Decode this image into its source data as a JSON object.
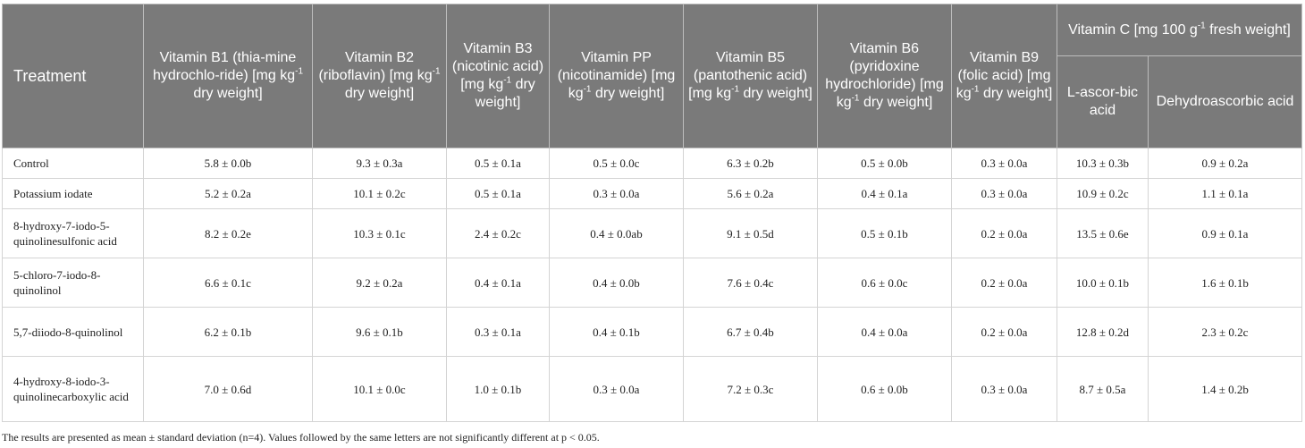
{
  "table": {
    "headers": {
      "treatment": "Treatment",
      "b1": {
        "pre": "Vitamin B1 (thia-mine hydrochlo-ride) [mg kg",
        "sup": "-1",
        "post": " dry weight]"
      },
      "b2": {
        "pre": "Vitamin B2 (riboflavin) [mg kg",
        "sup": "-1",
        "post": " dry weight]"
      },
      "b3": {
        "pre": "Vitamin B3 (nicotinic acid) [mg kg",
        "sup": "-1",
        "post": " dry weight]"
      },
      "pp": {
        "pre": "Vitamin PP (nicotinamide) [mg kg",
        "sup": "-1",
        "post": " dry weight]"
      },
      "b5": {
        "pre": "Vitamin B5 (pantothenic acid) [mg kg",
        "sup": "-1",
        "post": " dry weight]"
      },
      "b6": {
        "pre": "Vitamin B6 (pyridoxine hydrochloride) [mg kg",
        "sup": "-1",
        "post": " dry weight]"
      },
      "b9": {
        "pre": "Vitamin B9 (folic acid) [mg kg",
        "sup": "-1",
        "post": " dry weight]"
      },
      "vitc": {
        "pre": "Vitamin C [mg 100 g",
        "sup": "-1",
        "post": " fresh weight]"
      },
      "lasc": "L-ascor-bic acid",
      "dha": "Dehydroascorbic acid"
    },
    "rows": [
      {
        "treatment": "Control",
        "values": [
          "5.8 ± 0.0b",
          "9.3 ± 0.3a",
          "0.5 ± 0.1a",
          "0.5 ± 0.0c",
          "6.3 ± 0.2b",
          "0.5 ± 0.0b",
          "0.3 ± 0.0a",
          "10.3 ± 0.3b",
          "0.9 ± 0.2a"
        ]
      },
      {
        "treatment": "Potassium iodate",
        "values": [
          "5.2 ± 0.2a",
          "10.1 ± 0.2c",
          "0.5 ± 0.1a",
          "0.3 ± 0.0a",
          "5.6 ± 0.2a",
          "0.4 ± 0.1a",
          "0.3 ± 0.0a",
          "10.9 ± 0.2c",
          "1.1 ± 0.1a"
        ]
      },
      {
        "treatment": "8-hydroxy-7-iodo-5-quinolinesulfonic acid",
        "values": [
          "8.2 ± 0.2e",
          "10.3 ± 0.1c",
          "2.4 ± 0.2c",
          "0.4 ± 0.0ab",
          "9.1 ± 0.5d",
          "0.5 ± 0.1b",
          "0.2 ± 0.0a",
          "13.5 ± 0.6e",
          "0.9 ± 0.1a"
        ]
      },
      {
        "treatment": "5-chloro-7-iodo-8-quinolinol",
        "values": [
          "6.6 ± 0.1c",
          "9.2 ± 0.2a",
          "0.4 ± 0.1a",
          "0.4 ± 0.0b",
          "7.6 ± 0.4c",
          "0.6 ± 0.0c",
          "0.2 ± 0.0a",
          "10.0 ± 0.1b",
          "1.6 ± 0.1b"
        ]
      },
      {
        "treatment": "5,7-diiodo-8-quinolinol",
        "values": [
          "6.2 ± 0.1b",
          "9.6 ± 0.1b",
          "0.3 ± 0.1a",
          "0.4 ± 0.1b",
          "6.7 ± 0.4b",
          "0.4 ± 0.0a",
          "0.2 ± 0.0a",
          "12.8 ± 0.2d",
          "2.3 ± 0.2c"
        ]
      },
      {
        "treatment": "4-hydroxy-8-iodo-3-quinolinecarboxylic acid",
        "values": [
          "7.0 ± 0.6d",
          "10.1 ± 0.0c",
          "1.0 ± 0.1b",
          "0.3 ± 0.0a",
          "7.2 ± 0.3c",
          "0.6 ± 0.0b",
          "0.3 ± 0.0a",
          "8.7 ± 0.5a",
          "1.4 ± 0.2b"
        ]
      }
    ],
    "footnote": "The results are presented as mean ± standard deviation (n=4). Values followed by the same letters are not significantly different at p < 0.05."
  }
}
